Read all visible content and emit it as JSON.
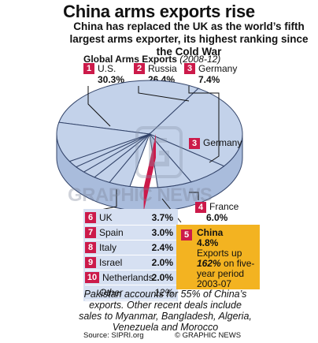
{
  "title": "China arms exports rise",
  "subtitle": "China has replaced the UK as the world’s fifth largest arms exporter, its highest ranking since the Cold War",
  "section_heading": "Global Arms Exports",
  "period": "(2008-12)",
  "colors": {
    "accent": "#cc1a4a",
    "pie_fill": "#c3d2ea",
    "pie_side": "#a9bcdc",
    "china_slice": "#ffffff",
    "china_box": "#f3b321",
    "table_bg": "#d6e0f2"
  },
  "chart_data": {
    "type": "pie",
    "title": "Global Arms Exports (2008-12)",
    "slices": [
      {
        "rank": "1",
        "label": "U.S.",
        "value": 30.3,
        "value_label": "30.3%"
      },
      {
        "rank": "2",
        "label": "Russia",
        "value": 26.4,
        "value_label": "26.4%"
      },
      {
        "rank": "3",
        "label": "Germany",
        "value": 7.4,
        "value_label": "7.4%"
      },
      {
        "rank": "4",
        "label": "France",
        "value": 6.0,
        "value_label": "6.0%"
      },
      {
        "rank": "5",
        "label": "China",
        "value": 4.8,
        "value_label": "4.8%"
      },
      {
        "rank": "6",
        "label": "UK",
        "value": 3.7,
        "value_label": "3.7%"
      },
      {
        "rank": "7",
        "label": "Spain",
        "value": 3.0,
        "value_label": "3.0%"
      },
      {
        "rank": "8",
        "label": "Italy",
        "value": 2.4,
        "value_label": "2.4%"
      },
      {
        "rank": "9",
        "label": "Israel",
        "value": 2.0,
        "value_label": "2.0%"
      },
      {
        "rank": "10",
        "label": "Netherlands",
        "value": 2.0,
        "value_label": "2.0%"
      },
      {
        "rank": "",
        "label": "Other",
        "value": 12,
        "value_label": "12%"
      }
    ]
  },
  "china_note": {
    "prefix": "Exports up",
    "highlight": "162%",
    "suffix": "on five-year period 2003-07"
  },
  "footnote": "Pakistan accounts for 55% of China’s exports. Other recent deals include sales to Myanmar, Bangladesh, Algeria, Venezuela and Morocco",
  "source": "Source: SIPRI.org",
  "credit": "© GRAPHIC NEWS",
  "watermark": "GRAPHIC NEWS"
}
